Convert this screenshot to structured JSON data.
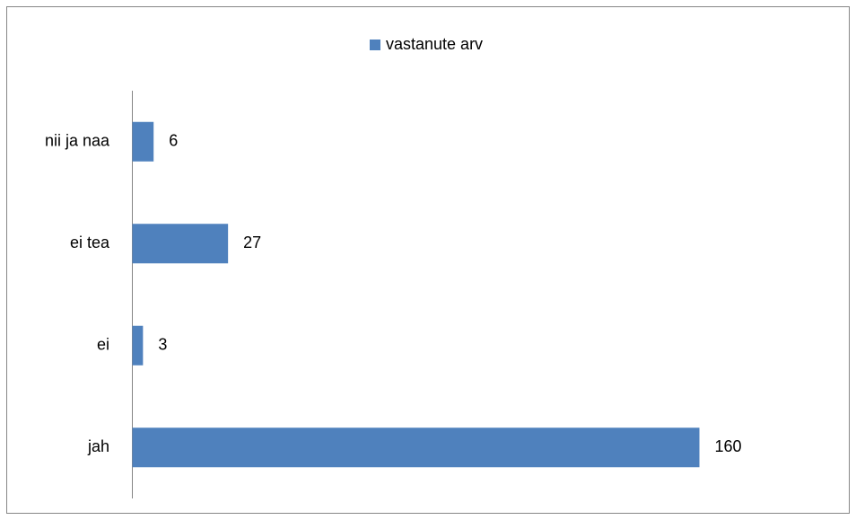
{
  "chart_data": {
    "type": "bar",
    "orientation": "horizontal",
    "categories": [
      "jah",
      "ei",
      "ei tea",
      "nii ja naa"
    ],
    "series": [
      {
        "name": "vastanute arv",
        "color": "#4f81bd",
        "values": [
          160,
          3,
          27,
          6
        ]
      }
    ],
    "legend": "top",
    "data_labels": true
  }
}
